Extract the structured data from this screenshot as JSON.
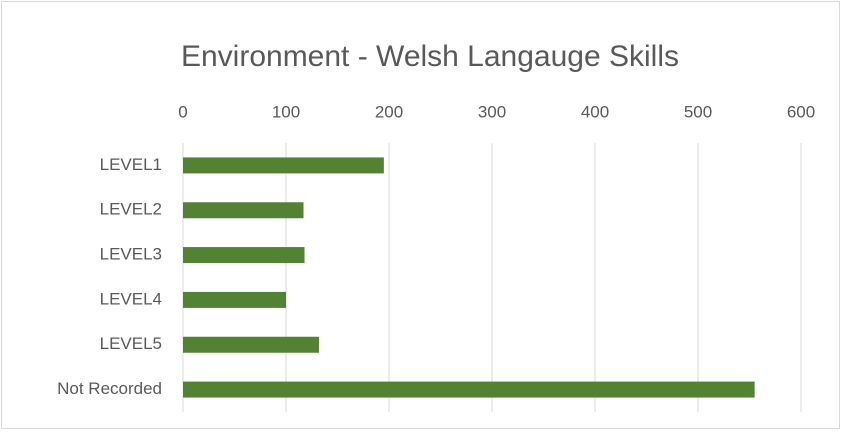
{
  "chart_data": {
    "type": "bar",
    "orientation": "horizontal",
    "title": "Environment - Welsh Langauge Skills",
    "categories": [
      "LEVEL1",
      "LEVEL2",
      "LEVEL3",
      "LEVEL4",
      "LEVEL5",
      "Not Recorded"
    ],
    "values": [
      195,
      117,
      118,
      100,
      132,
      555
    ],
    "color": "#548235",
    "xlim": [
      0,
      600
    ],
    "xticks": [
      0,
      100,
      200,
      300,
      400,
      500,
      600
    ],
    "grid": true
  }
}
